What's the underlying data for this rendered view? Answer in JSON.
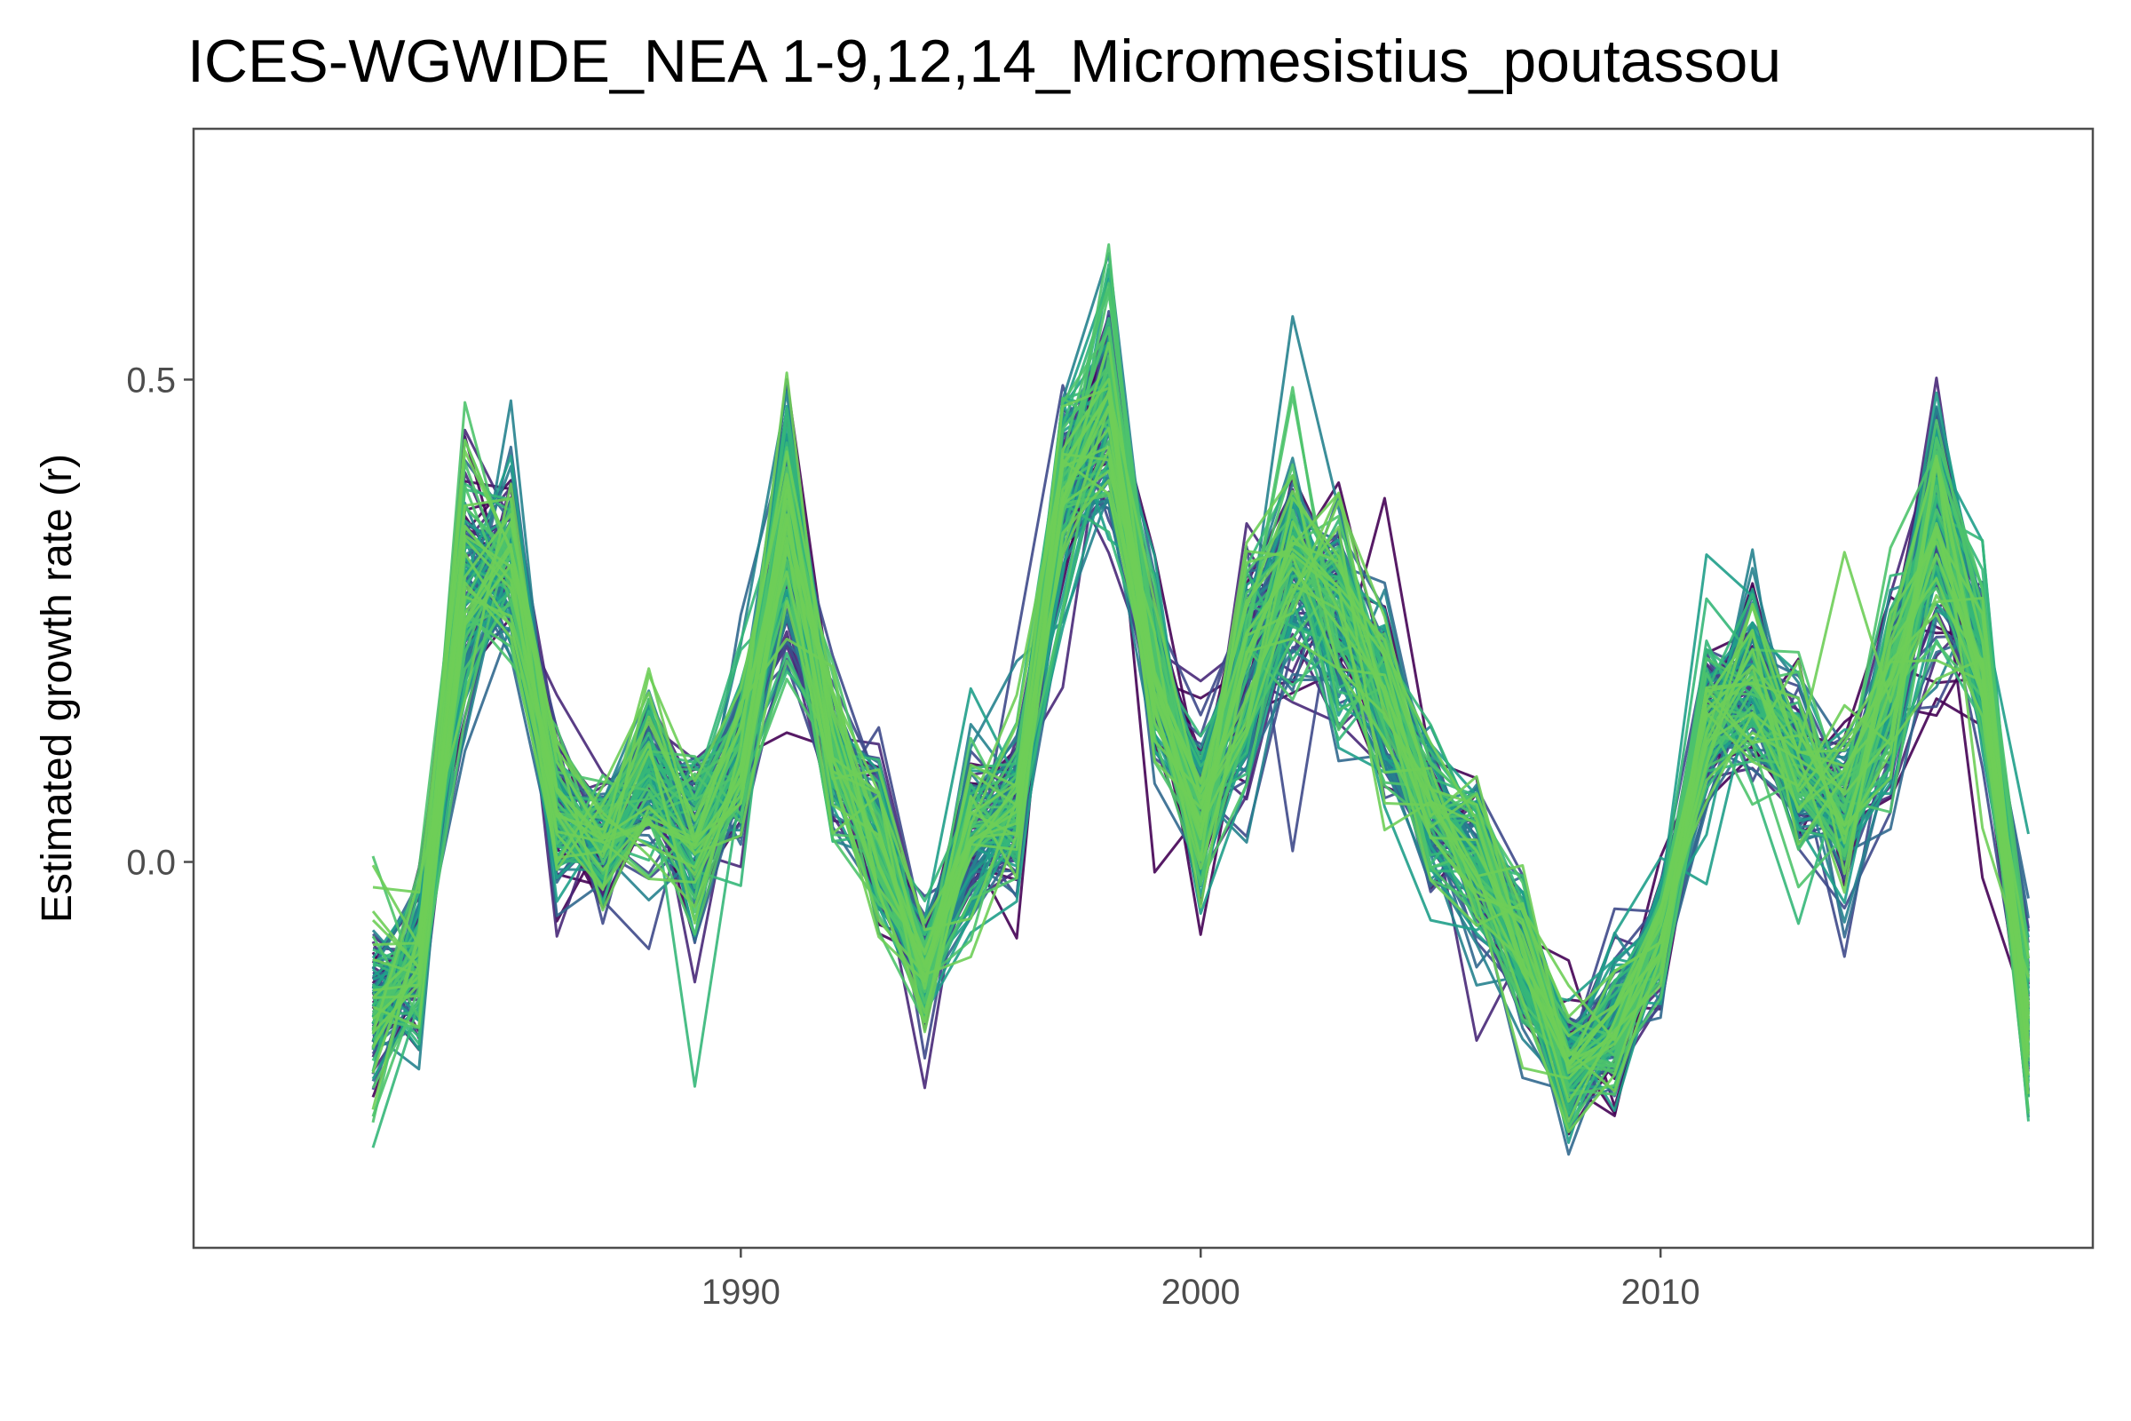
{
  "chart_data": {
    "type": "line",
    "title": "ICES-WGWIDE_NEA 1-9,12,14_Micromesistius_poutassou",
    "xlabel": "",
    "ylabel": "Estimated growth rate (r)",
    "x": [
      1982,
      1983,
      1984,
      1985,
      1986,
      1987,
      1988,
      1989,
      1990,
      1991,
      1992,
      1993,
      1994,
      1995,
      1996,
      1997,
      1998,
      1999,
      2000,
      2001,
      2002,
      2003,
      2004,
      2005,
      2006,
      2007,
      2008,
      2009,
      2010,
      2011,
      2012,
      2013,
      2014,
      2015,
      2016,
      2017,
      2018
    ],
    "xlim": [
      1978.1,
      2019.4
    ],
    "ylim": [
      -0.4,
      0.76
    ],
    "x_ticks": [
      1990,
      2000,
      2010
    ],
    "x_tick_labels": [
      "1990",
      "2000",
      "2010"
    ],
    "y_ticks": [
      0.0,
      0.5
    ],
    "y_tick_labels": [
      "0.0",
      "0.5"
    ],
    "grid": false,
    "legend": "none",
    "color_scale": "viridis (dark purple to green)",
    "palette": [
      "#440154",
      "#482878",
      "#3e4989",
      "#31688e",
      "#26828e",
      "#1f9e89",
      "#35b779",
      "#4ec36b",
      "#6ece58"
    ],
    "series_count": 140,
    "central_estimate": [
      -0.15,
      -0.11,
      0.28,
      0.3,
      0.05,
      0.02,
      0.09,
      0.03,
      0.11,
      0.34,
      0.11,
      0.02,
      -0.12,
      0.03,
      0.06,
      0.38,
      0.46,
      0.19,
      0.05,
      0.2,
      0.3,
      0.26,
      0.17,
      0.05,
      0.0,
      -0.09,
      -0.21,
      -0.17,
      -0.08,
      0.14,
      0.19,
      0.1,
      0.06,
      0.18,
      0.35,
      0.21,
      -0.17
    ],
    "spread": [
      0.05,
      0.05,
      0.08,
      0.06,
      0.05,
      0.04,
      0.05,
      0.05,
      0.05,
      0.08,
      0.05,
      0.05,
      0.04,
      0.05,
      0.05,
      0.07,
      0.08,
      0.06,
      0.05,
      0.07,
      0.07,
      0.07,
      0.06,
      0.05,
      0.05,
      0.05,
      0.04,
      0.04,
      0.04,
      0.05,
      0.06,
      0.05,
      0.05,
      0.06,
      0.08,
      0.06,
      0.05
    ]
  }
}
